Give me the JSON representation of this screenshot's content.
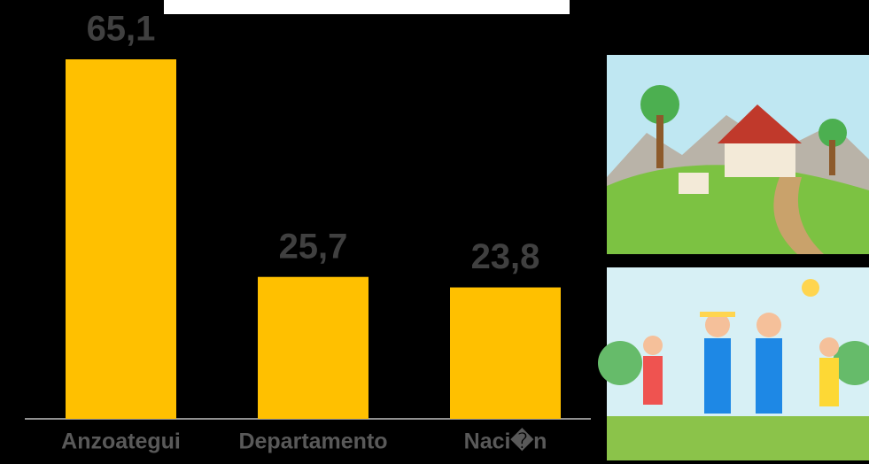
{
  "chart_data": {
    "type": "bar",
    "categories": [
      "Anzoategui",
      "Departamento",
      "Naci�n"
    ],
    "values": [
      65.1,
      25.7,
      23.8
    ],
    "value_labels": [
      "65,1",
      "25,7",
      "23,8"
    ],
    "color": "#FFC000"
  }
}
